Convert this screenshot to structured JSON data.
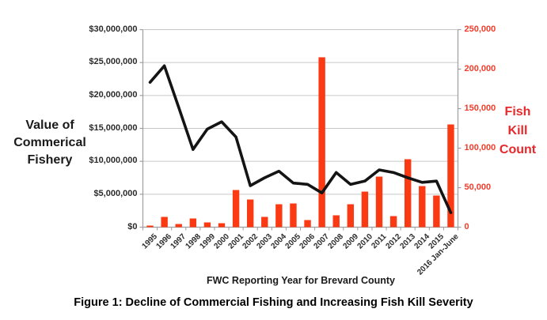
{
  "figure": {
    "caption": "Figure 1: Decline of Commercial Fishing and Increasing Fish Kill Severity",
    "x_axis_title": "FWC Reporting Year for Brevard County",
    "left_axis_title": {
      "line1": "Value of",
      "line2": "Commerical",
      "line3": "Fishery"
    },
    "right_axis_title": {
      "line1": "Fish",
      "line2": "Kill",
      "line3": "Count"
    }
  },
  "colors": {
    "bar": "#fb3912",
    "line": "#141414",
    "grid": "#c7c7c7",
    "axis": "#9e9e9e",
    "left_tick_text": "#2b2b2b",
    "right_tick_text": "#f43b2a",
    "right_title_text": "#e8282a"
  },
  "chart_data": {
    "type": "combo: line (left axis) + bar (right axis)",
    "title": "",
    "categories": [
      "1995",
      "1996",
      "1997",
      "1998",
      "1999",
      "2000",
      "2001",
      "2002",
      "2003",
      "2004",
      "2005",
      "2006",
      "2007",
      "2008",
      "2009",
      "2010",
      "2011",
      "2012",
      "2013",
      "2014",
      "2015",
      "2016 Jan-June"
    ],
    "series": [
      {
        "name": "Value of Commerical Fishery",
        "type": "line",
        "axis": "left",
        "color": "#141414",
        "values": [
          22000000,
          24500000,
          18200000,
          11800000,
          14900000,
          16000000,
          13700000,
          6300000,
          7500000,
          8500000,
          6700000,
          6500000,
          5200000,
          8300000,
          6500000,
          7000000,
          8700000,
          8300000,
          7500000,
          6800000,
          7000000,
          2200000
        ]
      },
      {
        "name": "Fish Kill Count",
        "type": "bar",
        "axis": "right",
        "color": "#fb3912",
        "values": [
          2000,
          13000,
          4000,
          11000,
          6000,
          5000,
          47000,
          35000,
          13000,
          29000,
          30000,
          9000,
          215000,
          15000,
          29000,
          45000,
          64000,
          14000,
          86000,
          52000,
          40000,
          130000
        ]
      }
    ],
    "left_axis": {
      "title": "Value of Commerical Fishery",
      "min": 0,
      "max": 30000000,
      "step": 5000000,
      "tick_labels": [
        "$30,000,000",
        "$25,000,000",
        "$20,000,000",
        "$15,000,000",
        "$10,000,000",
        "$5,000,000",
        "$0"
      ]
    },
    "right_axis": {
      "title": "Fish Kill Count",
      "min": 0,
      "max": 250000,
      "step": 50000,
      "tick_labels": [
        "250,000",
        "200,000",
        "150,000",
        "100,000",
        "50,000",
        "0"
      ]
    },
    "x_axis": {
      "title": "FWC Reporting Year for Brevard County",
      "label_rotation_deg": -45
    },
    "grid": true,
    "legend": "none"
  }
}
